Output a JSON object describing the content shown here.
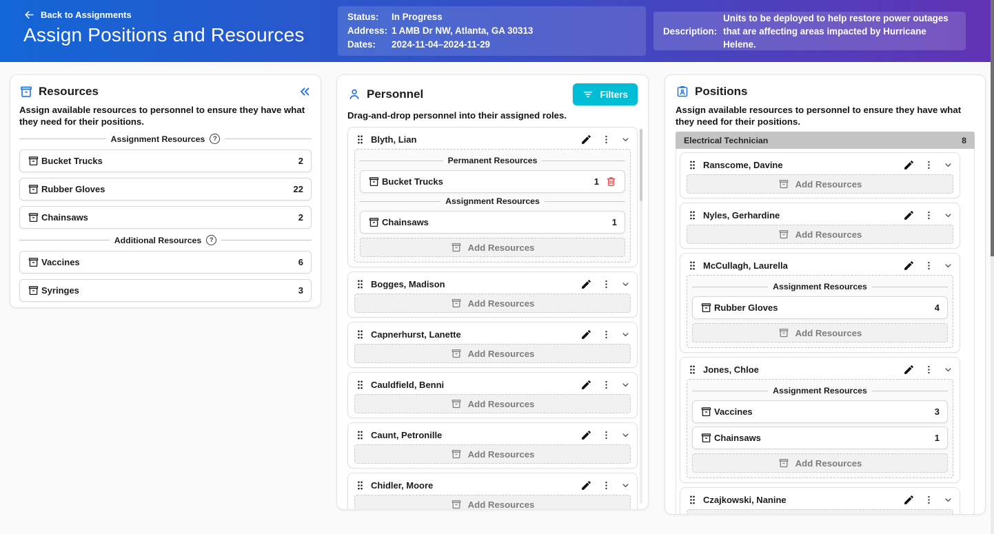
{
  "header": {
    "back_label": "Back to Assignments",
    "title": "Assign Positions and Resources",
    "info": {
      "status_label": "Status:",
      "status_value": "In Progress",
      "address_label": "Address:",
      "address_value": "1 AMB Dr NW, Atlanta, GA 30313",
      "dates_label": "Dates:",
      "dates_value": "2024-11-04–2024-11-29"
    },
    "description": {
      "label": "Description:",
      "value": "Units to be deployed to help restore power outages that are affecting areas impacted by Hurricane Helene."
    }
  },
  "resources_panel": {
    "title": "Resources",
    "subtitle": "Assign available resources to personnel to ensure they have what they need for their positions.",
    "sections": [
      {
        "label": "Assignment Resources",
        "items": [
          {
            "name": "Bucket Trucks",
            "count": "2"
          },
          {
            "name": "Rubber Gloves",
            "count": "22"
          },
          {
            "name": "Chainsaws",
            "count": "2"
          }
        ]
      },
      {
        "label": "Additional Resources",
        "items": [
          {
            "name": "Vaccines",
            "count": "6"
          },
          {
            "name": "Syringes",
            "count": "3"
          }
        ]
      }
    ]
  },
  "personnel_panel": {
    "title": "Personnel",
    "filters_button": "Filters",
    "subtitle": "Drag-and-drop personnel into their assigned roles.",
    "add_resources_label": "Add Resources",
    "people": [
      {
        "name": "Blyth, Lian",
        "sections": [
          {
            "label": "Permanent Resources",
            "items": [
              {
                "name": "Bucket Trucks",
                "count": "1",
                "deletable": true
              }
            ]
          },
          {
            "label": "Assignment Resources",
            "items": [
              {
                "name": "Chainsaws",
                "count": "1"
              }
            ]
          }
        ]
      },
      {
        "name": "Bogges, Madison",
        "sections": []
      },
      {
        "name": "Capnerhurst, Lanette",
        "sections": []
      },
      {
        "name": "Cauldfield, Benni",
        "sections": []
      },
      {
        "name": "Caunt, Petronille",
        "sections": []
      },
      {
        "name": "Chidler, Moore",
        "sections": []
      }
    ]
  },
  "positions_panel": {
    "title": "Positions",
    "subtitle": "Assign available resources to personnel to ensure they have what they need for their positions.",
    "add_resources_label": "Add Resources",
    "group": {
      "name": "Electrical Technician",
      "count": "8"
    },
    "people": [
      {
        "name": "Ranscome, Davine",
        "sections": []
      },
      {
        "name": "Nyles, Gerhardine",
        "sections": []
      },
      {
        "name": "McCullagh, Laurella",
        "sections": [
          {
            "label": "Assignment Resources",
            "items": [
              {
                "name": "Rubber Gloves",
                "count": "4"
              }
            ]
          }
        ]
      },
      {
        "name": "Jones, Chloe",
        "sections": [
          {
            "label": "Assignment Resources",
            "items": [
              {
                "name": "Vaccines",
                "count": "3"
              },
              {
                "name": "Chainsaws",
                "count": "1"
              }
            ]
          }
        ]
      },
      {
        "name": "Czajkowski, Nanine",
        "sections": []
      }
    ]
  },
  "colors": {
    "header_gradient_start": "#1366d6",
    "header_gradient_end": "#6133b4",
    "accent_blue": "#1a73e8",
    "filters_cyan": "#00bcd4",
    "delete_red": "#e53935",
    "group_header_gray": "#c4c4c4"
  }
}
